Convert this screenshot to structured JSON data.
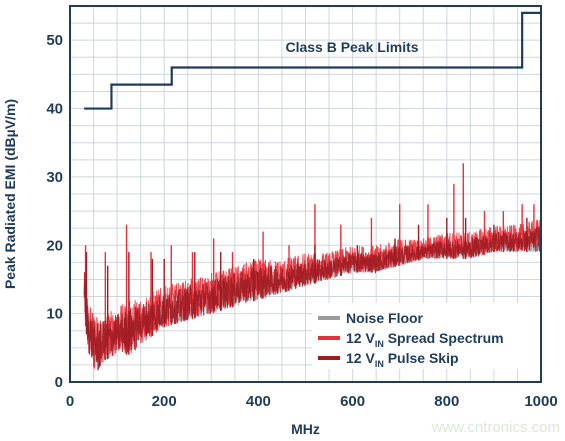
{
  "chart_data": {
    "type": "line",
    "xlabel": "MHz",
    "ylabel": "Peak Radiated EMI (dBµV/m)",
    "xlim": [
      0,
      1000
    ],
    "ylim": [
      0,
      55
    ],
    "xticks": [
      0,
      200,
      400,
      600,
      800,
      1000
    ],
    "yticks": [
      0,
      10,
      20,
      30,
      40,
      50
    ],
    "grid": true,
    "legend_placement": "bottom-right",
    "annotation": "Class B Peak Limits",
    "limit_line": {
      "x": [
        30,
        88,
        88,
        216,
        216,
        960,
        960,
        1000
      ],
      "y": [
        40,
        40,
        43.5,
        43.5,
        46,
        46,
        54,
        54
      ],
      "color": "#1f3c5a"
    },
    "series": [
      {
        "name": "Noise Floor",
        "legend_main": "Noise Floor",
        "legend_sub": "",
        "legend_suffix": "",
        "color": "#9b9b9b",
        "envelope_x": [
          30,
          45,
          60,
          100,
          150,
          200,
          250,
          300,
          350,
          400,
          450,
          500,
          550,
          600,
          650,
          700,
          750,
          800,
          850,
          900,
          950,
          1000
        ],
        "envelope_low": [
          12,
          4,
          2,
          5,
          7,
          8,
          9,
          10,
          11,
          12,
          13,
          14,
          15,
          16,
          16,
          17,
          18,
          18,
          18,
          19,
          19,
          19
        ],
        "envelope_high": [
          15,
          8,
          6,
          8,
          9,
          11,
          12,
          13,
          14,
          15,
          16,
          16,
          17,
          18,
          18,
          19,
          19,
          20,
          20,
          21,
          21,
          21
        ],
        "spikes": []
      },
      {
        "name": "12 VIN Spread Spectrum",
        "legend_main": "12 V",
        "legend_sub": "IN",
        "legend_suffix": " Spread Spectrum",
        "color": "#e8303a",
        "envelope_x": [
          30,
          40,
          50,
          60,
          70,
          100,
          130,
          160,
          200,
          250,
          300,
          350,
          400,
          450,
          500,
          550,
          600,
          650,
          700,
          750,
          800,
          850,
          900,
          950,
          1000
        ],
        "envelope_low": [
          10,
          4,
          2,
          1,
          3,
          4,
          4,
          6,
          8,
          9,
          10,
          11,
          12,
          13,
          14,
          15,
          16,
          16,
          17,
          18,
          18,
          18,
          19,
          19,
          20
        ],
        "envelope_high": [
          18,
          12,
          10,
          10,
          10,
          11,
          12,
          13,
          14,
          15,
          16,
          17,
          18,
          18,
          19,
          19,
          20,
          20,
          21,
          21,
          22,
          22,
          23,
          23,
          24
        ],
        "spikes": [
          [
            33,
            20
          ],
          [
            75,
            19
          ],
          [
            120,
            23
          ],
          [
            172,
            19
          ],
          [
            215,
            20
          ],
          [
            260,
            19
          ],
          [
            305,
            21
          ],
          [
            345,
            19
          ],
          [
            410,
            22
          ],
          [
            465,
            20
          ],
          [
            520,
            26
          ],
          [
            575,
            23
          ],
          [
            640,
            24
          ],
          [
            700,
            26
          ],
          [
            760,
            26
          ],
          [
            815,
            29
          ],
          [
            835,
            32
          ],
          [
            880,
            25
          ],
          [
            920,
            25
          ],
          [
            960,
            26
          ],
          [
            985,
            26
          ]
        ]
      },
      {
        "name": "12 VIN Pulse Skip",
        "legend_main": "12 V",
        "legend_sub": "IN",
        "legend_suffix": " Pulse Skip",
        "color": "#9e1b22",
        "envelope_x": [
          30,
          40,
          50,
          60,
          70,
          100,
          130,
          160,
          200,
          250,
          300,
          350,
          400,
          450,
          500,
          550,
          600,
          650,
          700,
          750,
          800,
          850,
          900,
          950,
          1000
        ],
        "envelope_low": [
          10,
          4,
          2,
          1,
          3,
          4,
          4,
          6,
          8,
          9,
          10,
          11,
          12,
          13,
          14,
          15,
          16,
          16,
          17,
          18,
          18,
          18,
          19,
          19,
          19
        ],
        "envelope_high": [
          17,
          11,
          9,
          9,
          9,
          10,
          11,
          12,
          13,
          14,
          15,
          16,
          17,
          17,
          18,
          18,
          19,
          19,
          20,
          20,
          21,
          21,
          22,
          22,
          23
        ],
        "spikes": [
          [
            35,
            19
          ],
          [
            80,
            17
          ],
          [
            125,
            19
          ],
          [
            175,
            18
          ],
          [
            200,
            18
          ],
          [
            265,
            19
          ],
          [
            320,
            19
          ],
          [
            390,
            18
          ],
          [
            520,
            20
          ],
          [
            610,
            20
          ],
          [
            690,
            21
          ],
          [
            740,
            23
          ],
          [
            800,
            24
          ],
          [
            840,
            24
          ],
          [
            900,
            23
          ],
          [
            970,
            24
          ]
        ]
      }
    ]
  },
  "watermark": "www.cntronics.com"
}
